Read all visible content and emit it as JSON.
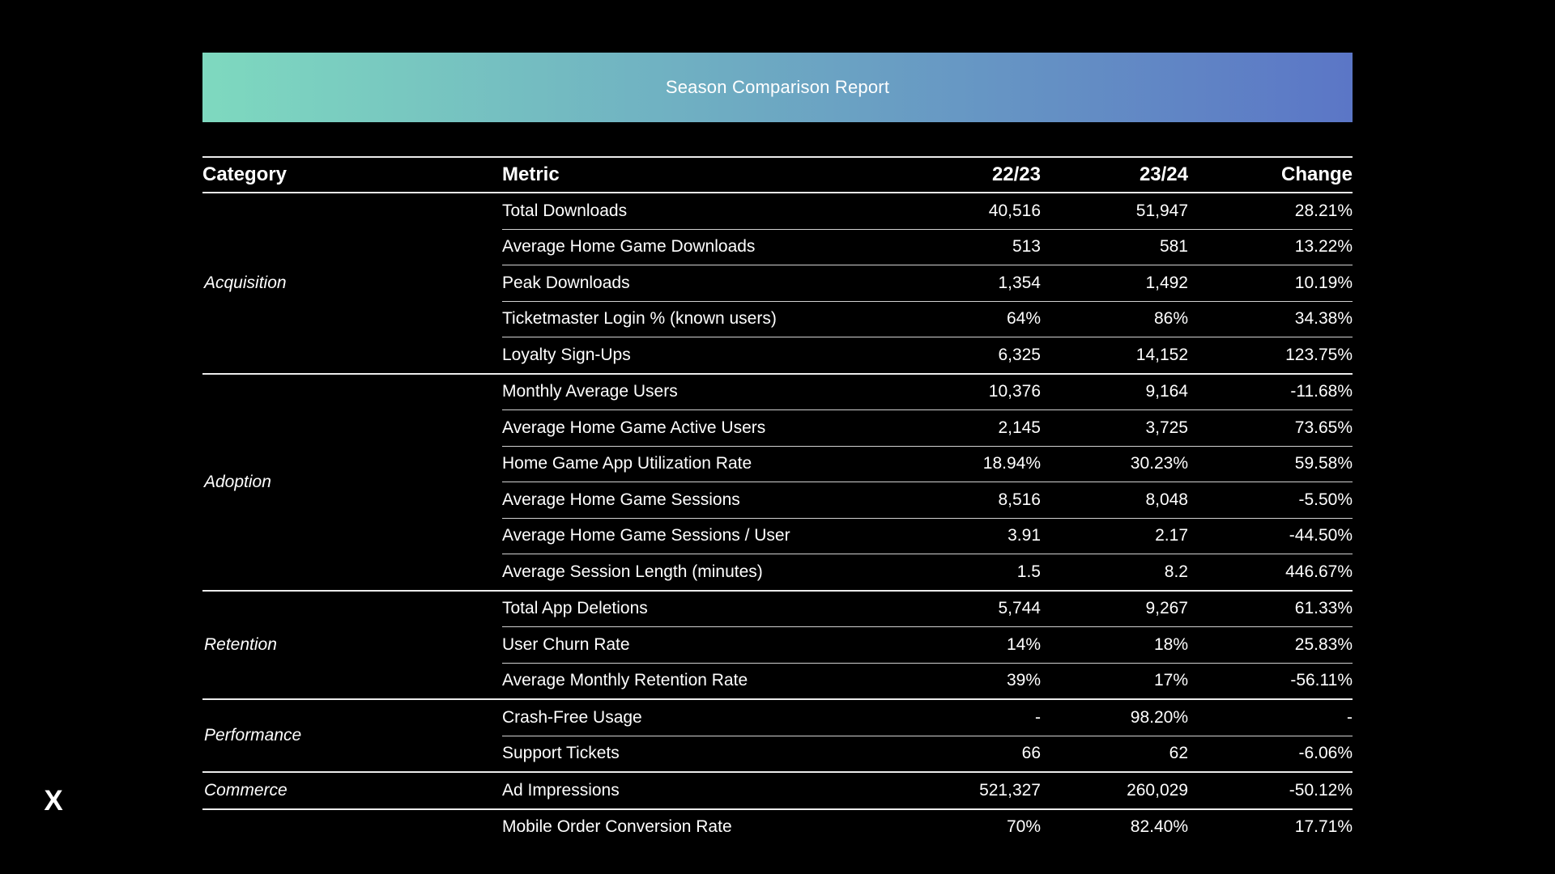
{
  "window": {
    "close_label": "X"
  },
  "banner": {
    "title": "Season Comparison Report",
    "gradient_from": "#7ed9bf",
    "gradient_to": "#5b76c6"
  },
  "table": {
    "columns": [
      "Category",
      "Metric",
      "22/23",
      "23/24",
      "Change"
    ],
    "sections": [
      {
        "category": "Acquisition",
        "rows": [
          {
            "metric": "Total Downloads",
            "s2223": "40,516",
            "s2324": "51,947",
            "change": "28.21%"
          },
          {
            "metric": "Average Home Game Downloads",
            "s2223": "513",
            "s2324": "581",
            "change": "13.22%"
          },
          {
            "metric": "Peak Downloads",
            "s2223": "1,354",
            "s2324": "1,492",
            "change": "10.19%"
          },
          {
            "metric": "Ticketmaster Login % (known users)",
            "s2223": "64%",
            "s2324": "86%",
            "change": "34.38%"
          },
          {
            "metric": "Loyalty Sign-Ups",
            "s2223": "6,325",
            "s2324": "14,152",
            "change": "123.75%"
          }
        ]
      },
      {
        "category": "Adoption",
        "rows": [
          {
            "metric": "Monthly Average Users",
            "s2223": "10,376",
            "s2324": "9,164",
            "change": "-11.68%"
          },
          {
            "metric": "Average Home Game Active Users",
            "s2223": "2,145",
            "s2324": "3,725",
            "change": "73.65%"
          },
          {
            "metric": "Home Game App Utilization Rate",
            "s2223": "18.94%",
            "s2324": "30.23%",
            "change": "59.58%"
          },
          {
            "metric": "Average Home Game Sessions",
            "s2223": "8,516",
            "s2324": "8,048",
            "change": "-5.50%"
          },
          {
            "metric": "Average Home Game Sessions / User",
            "s2223": "3.91",
            "s2324": "2.17",
            "change": "-44.50%"
          },
          {
            "metric": "Average Session Length (minutes)",
            "s2223": "1.5",
            "s2324": "8.2",
            "change": "446.67%"
          }
        ]
      },
      {
        "category": "Retention",
        "rows": [
          {
            "metric": "Total App Deletions",
            "s2223": "5,744",
            "s2324": "9,267",
            "change": "61.33%"
          },
          {
            "metric": "User Churn Rate",
            "s2223": "14%",
            "s2324": "18%",
            "change": "25.83%"
          },
          {
            "metric": "Average Monthly Retention Rate",
            "s2223": "39%",
            "s2324": "17%",
            "change": "-56.11%"
          }
        ]
      },
      {
        "category": "Performance",
        "rows": [
          {
            "metric": "Crash-Free Usage",
            "s2223": "-",
            "s2324": "98.20%",
            "change": "-"
          },
          {
            "metric": "Support Tickets",
            "s2223": "66",
            "s2324": "62",
            "change": "-6.06%"
          }
        ]
      },
      {
        "category": "Commerce",
        "rows": [
          {
            "metric": "Ad Impressions",
            "s2223": "521,327",
            "s2324": "260,029",
            "change": "-50.12%"
          }
        ]
      },
      {
        "category": "",
        "rows": [
          {
            "metric": "Mobile Order Conversion Rate",
            "s2223": "70%",
            "s2324": "82.40%",
            "change": "17.71%"
          }
        ]
      }
    ]
  }
}
